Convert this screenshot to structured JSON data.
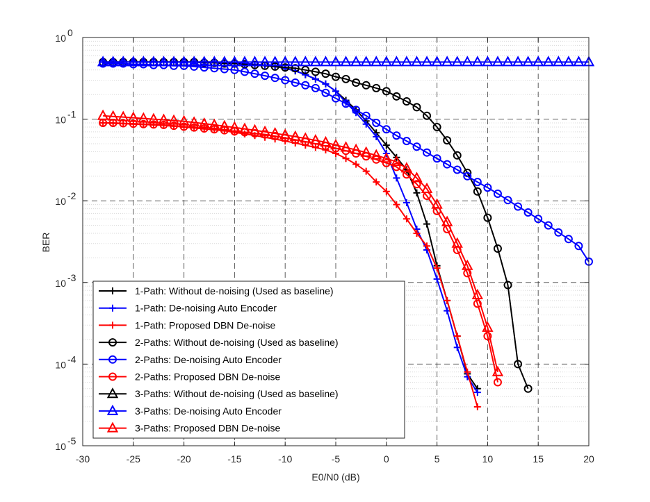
{
  "chart_data": {
    "type": "line",
    "yscale": "log",
    "title": "",
    "xlabel": "E0/N0 (dB)",
    "ylabel": "BER",
    "xlim": [
      -30,
      20
    ],
    "ylim": [
      1e-05,
      1
    ],
    "grid": true,
    "legend_position": "bottom-left",
    "x_ticks": [
      -30,
      -25,
      -20,
      -15,
      -10,
      -5,
      0,
      5,
      10,
      15,
      20
    ],
    "y_ticks": [
      {
        "value": 1e-05,
        "base": "10",
        "exp": "-5"
      },
      {
        "value": 0.0001,
        "base": "10",
        "exp": "-4"
      },
      {
        "value": 0.001,
        "base": "10",
        "exp": "-3"
      },
      {
        "value": 0.01,
        "base": "10",
        "exp": "-2"
      },
      {
        "value": 0.1,
        "base": "10",
        "exp": "-1"
      },
      {
        "value": 1,
        "base": "10",
        "exp": "0"
      }
    ],
    "series": [
      {
        "name": "1-Path: Without de-noising (Used as baseline)",
        "color": "#000000",
        "marker": "plus",
        "x": [
          -28,
          -27,
          -26,
          -25,
          -24,
          -23,
          -22,
          -21,
          -20,
          -19,
          -18,
          -17,
          -16,
          -15,
          -14,
          -13,
          -12,
          -11,
          -10,
          -9,
          -8,
          -7,
          -6,
          -5,
          -4,
          -3,
          -2,
          -1,
          0,
          1,
          2,
          3,
          4,
          5,
          6,
          7,
          8,
          9
        ],
        "y": [
          0.5,
          0.5,
          0.5,
          0.5,
          0.5,
          0.5,
          0.5,
          0.5,
          0.5,
          0.5,
          0.5,
          0.5,
          0.49,
          0.49,
          0.48,
          0.47,
          0.46,
          0.44,
          0.42,
          0.39,
          0.35,
          0.31,
          0.27,
          0.22,
          0.17,
          0.13,
          0.095,
          0.068,
          0.048,
          0.034,
          0.024,
          0.0125,
          0.0052,
          0.0016,
          0.0006,
          0.00022,
          7.6e-05,
          5e-05
        ]
      },
      {
        "name": "1-Path: De-noising Auto Encoder",
        "color": "#0000ff",
        "marker": "plus",
        "x": [
          -28,
          -27,
          -26,
          -25,
          -24,
          -23,
          -22,
          -21,
          -20,
          -19,
          -18,
          -17,
          -16,
          -15,
          -14,
          -13,
          -12,
          -11,
          -10,
          -9,
          -8,
          -7,
          -6,
          -5,
          -4,
          -3,
          -2,
          -1,
          0,
          1,
          2,
          3,
          4,
          5,
          6,
          7,
          8,
          9
        ],
        "y": [
          0.5,
          0.5,
          0.5,
          0.5,
          0.5,
          0.5,
          0.5,
          0.5,
          0.5,
          0.5,
          0.5,
          0.5,
          0.49,
          0.49,
          0.48,
          0.47,
          0.46,
          0.44,
          0.42,
          0.39,
          0.35,
          0.31,
          0.27,
          0.22,
          0.16,
          0.12,
          0.087,
          0.061,
          0.038,
          0.019,
          0.0095,
          0.0045,
          0.0025,
          0.0011,
          0.00045,
          0.00016,
          7e-05,
          4.5e-05
        ]
      },
      {
        "name": "1-Path: Proposed DBN De-noise",
        "color": "#ff0000",
        "marker": "plus",
        "x": [
          -28,
          -27,
          -26,
          -25,
          -24,
          -23,
          -22,
          -21,
          -20,
          -19,
          -18,
          -17,
          -16,
          -15,
          -14,
          -13,
          -12,
          -11,
          -10,
          -9,
          -8,
          -7,
          -6,
          -5,
          -4,
          -3,
          -2,
          -1,
          0,
          1,
          2,
          3,
          4,
          5,
          6,
          7,
          8,
          9
        ],
        "y": [
          0.09,
          0.089,
          0.088,
          0.087,
          0.086,
          0.085,
          0.084,
          0.082,
          0.08,
          0.078,
          0.076,
          0.074,
          0.072,
          0.069,
          0.066,
          0.063,
          0.06,
          0.057,
          0.054,
          0.051,
          0.048,
          0.045,
          0.042,
          0.038,
          0.033,
          0.028,
          0.023,
          0.017,
          0.013,
          0.009,
          0.006,
          0.004,
          0.0028,
          0.0015,
          0.0006,
          0.00022,
          8e-05,
          3e-05
        ]
      },
      {
        "name": "2-Paths: Without de-noising (Used as baseline)",
        "color": "#000000",
        "marker": "circle",
        "x": [
          -28,
          -27,
          -26,
          -25,
          -24,
          -23,
          -22,
          -21,
          -20,
          -19,
          -18,
          -17,
          -16,
          -15,
          -14,
          -13,
          -12,
          -11,
          -10,
          -9,
          -8,
          -7,
          -6,
          -5,
          -4,
          -3,
          -2,
          -1,
          0,
          1,
          2,
          3,
          4,
          5,
          6,
          7,
          8,
          9,
          10,
          11,
          12,
          13,
          14
        ],
        "y": [
          0.5,
          0.5,
          0.5,
          0.5,
          0.5,
          0.5,
          0.5,
          0.5,
          0.5,
          0.5,
          0.49,
          0.49,
          0.48,
          0.48,
          0.47,
          0.46,
          0.45,
          0.44,
          0.43,
          0.42,
          0.4,
          0.38,
          0.36,
          0.33,
          0.31,
          0.28,
          0.26,
          0.24,
          0.22,
          0.19,
          0.165,
          0.14,
          0.11,
          0.08,
          0.055,
          0.036,
          0.022,
          0.013,
          0.0062,
          0.0026,
          0.00093,
          0.0001,
          5e-05
        ]
      },
      {
        "name": "2-Paths: De-noising Auto Encoder",
        "color": "#0000ff",
        "marker": "circle",
        "x": [
          -28,
          -27,
          -26,
          -25,
          -24,
          -23,
          -22,
          -21,
          -20,
          -19,
          -18,
          -17,
          -16,
          -15,
          -14,
          -13,
          -12,
          -11,
          -10,
          -9,
          -8,
          -7,
          -6,
          -5,
          -4,
          -3,
          -2,
          -1,
          0,
          1,
          2,
          3,
          4,
          5,
          6,
          7,
          8,
          9,
          10,
          11,
          12,
          13,
          14,
          15,
          16,
          17,
          18,
          19,
          20
        ],
        "y": [
          0.48,
          0.48,
          0.48,
          0.47,
          0.47,
          0.46,
          0.46,
          0.45,
          0.45,
          0.44,
          0.43,
          0.42,
          0.41,
          0.4,
          0.38,
          0.36,
          0.34,
          0.32,
          0.3,
          0.28,
          0.26,
          0.24,
          0.21,
          0.18,
          0.155,
          0.13,
          0.11,
          0.09,
          0.075,
          0.063,
          0.054,
          0.046,
          0.039,
          0.033,
          0.028,
          0.024,
          0.02,
          0.017,
          0.0145,
          0.0122,
          0.0102,
          0.0085,
          0.0072,
          0.006,
          0.005,
          0.0041,
          0.0034,
          0.0028,
          0.0018
        ]
      },
      {
        "name": "2-Paths: Proposed DBN De-noise",
        "color": "#ff0000",
        "marker": "circle",
        "x": [
          -28,
          -27,
          -26,
          -25,
          -24,
          -23,
          -22,
          -21,
          -20,
          -19,
          -18,
          -17,
          -16,
          -15,
          -14,
          -13,
          -12,
          -11,
          -10,
          -9,
          -8,
          -7,
          -6,
          -5,
          -4,
          -3,
          -2,
          -1,
          0,
          1,
          2,
          3,
          4,
          5,
          6,
          7,
          8,
          9,
          10,
          11
        ],
        "y": [
          0.09,
          0.09,
          0.089,
          0.088,
          0.087,
          0.086,
          0.085,
          0.083,
          0.081,
          0.079,
          0.077,
          0.075,
          0.073,
          0.071,
          0.069,
          0.067,
          0.065,
          0.062,
          0.059,
          0.056,
          0.053,
          0.05,
          0.047,
          0.044,
          0.041,
          0.038,
          0.035,
          0.032,
          0.029,
          0.026,
          0.021,
          0.016,
          0.0115,
          0.0075,
          0.0045,
          0.0025,
          0.0013,
          0.00055,
          0.00022,
          6e-05
        ]
      },
      {
        "name": "3-Paths: Without de-noising (Used as baseline)",
        "color": "#000000",
        "marker": "triangle",
        "x": [],
        "y": []
      },
      {
        "name": "3-Paths: De-noising Auto Encoder",
        "color": "#0000ff",
        "marker": "triangle",
        "x": [
          -28,
          -27,
          -26,
          -25,
          -24,
          -23,
          -22,
          -21,
          -20,
          -19,
          -18,
          -17,
          -16,
          -15,
          -14,
          -13,
          -12,
          -11,
          -10,
          -9,
          -8,
          -7,
          -6,
          -5,
          -4,
          -3,
          -2,
          -1,
          0,
          1,
          2,
          3,
          4,
          5,
          6,
          7,
          8,
          9,
          10,
          11,
          12,
          13,
          14,
          15,
          16,
          17,
          18,
          19,
          20
        ],
        "y": [
          0.5,
          0.5,
          0.5,
          0.5,
          0.5,
          0.5,
          0.5,
          0.5,
          0.5,
          0.5,
          0.5,
          0.5,
          0.5,
          0.5,
          0.5,
          0.5,
          0.5,
          0.5,
          0.5,
          0.5,
          0.5,
          0.5,
          0.5,
          0.5,
          0.5,
          0.5,
          0.5,
          0.5,
          0.5,
          0.5,
          0.5,
          0.5,
          0.5,
          0.5,
          0.5,
          0.5,
          0.5,
          0.5,
          0.5,
          0.5,
          0.5,
          0.5,
          0.5,
          0.5,
          0.5,
          0.5,
          0.5,
          0.5,
          0.5
        ]
      },
      {
        "name": "3-Paths: Proposed DBN De-noise",
        "color": "#ff0000",
        "marker": "triangle",
        "x": [
          -28,
          -27,
          -26,
          -25,
          -24,
          -23,
          -22,
          -21,
          -20,
          -19,
          -18,
          -17,
          -16,
          -15,
          -14,
          -13,
          -12,
          -11,
          -10,
          -9,
          -8,
          -7,
          -6,
          -5,
          -4,
          -3,
          -2,
          -1,
          0,
          1,
          2,
          3,
          4,
          5,
          6,
          7,
          8,
          9,
          10,
          11
        ],
        "y": [
          0.11,
          0.108,
          0.106,
          0.104,
          0.102,
          0.1,
          0.098,
          0.096,
          0.094,
          0.091,
          0.088,
          0.085,
          0.082,
          0.079,
          0.076,
          0.073,
          0.07,
          0.067,
          0.064,
          0.061,
          0.058,
          0.055,
          0.052,
          0.048,
          0.045,
          0.042,
          0.039,
          0.036,
          0.033,
          0.03,
          0.025,
          0.019,
          0.014,
          0.009,
          0.0055,
          0.003,
          0.0016,
          0.0007,
          0.00028,
          8e-05
        ]
      }
    ]
  }
}
